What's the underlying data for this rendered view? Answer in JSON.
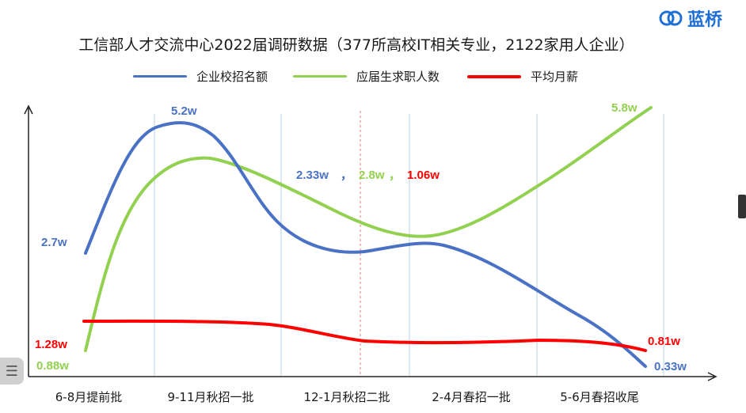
{
  "title": "工信部人才交流中心2022届调研数据（377所高校IT相关专业，2122家用人企业）",
  "logo": {
    "text": "蓝桥",
    "icon": "logo-icon"
  },
  "colors": {
    "blue": "#4a72c4",
    "green": "#92d050",
    "red": "#ff0000",
    "axis": "#222222",
    "grid": "#b7cfe6",
    "dashed": "#e47c7c"
  },
  "icons": {
    "side_button": "menu-lines-icon"
  },
  "side_button_glyph": "☰",
  "chart_data": {
    "type": "line",
    "title": "工信部人才交流中心2022届调研数据（377所高校IT相关专业，2122家用人企业）",
    "categories": [
      "6-8月提前批",
      "9-11月秋招一批",
      "12-1月秋招二批",
      "2-4月春招一批",
      "5-6月春招收尾"
    ],
    "series": [
      {
        "name": "企业校招名额",
        "color": "#4a72c4",
        "values": [
          2.7,
          5.2,
          2.33,
          null,
          0.33
        ]
      },
      {
        "name": "应届生求职人数",
        "color": "#92d050",
        "values": [
          0.88,
          null,
          2.8,
          null,
          5.8
        ]
      },
      {
        "name": "平均月薪",
        "color": "#ff0000",
        "values": [
          1.28,
          null,
          1.06,
          null,
          0.81
        ]
      }
    ],
    "data_labels": {
      "blue_start": "2.7w",
      "blue_peak": "5.2w",
      "mid_blue": "2.33w",
      "mid_sep1": "，",
      "mid_green": "2.8w",
      "mid_sep2": "，",
      "mid_red": "1.06w",
      "blue_end": "0.33w",
      "green_start": "0.88w",
      "green_end": "5.8w",
      "red_start": "1.28w",
      "red_end": "0.81w"
    },
    "grid": true,
    "legend": "top-center"
  }
}
